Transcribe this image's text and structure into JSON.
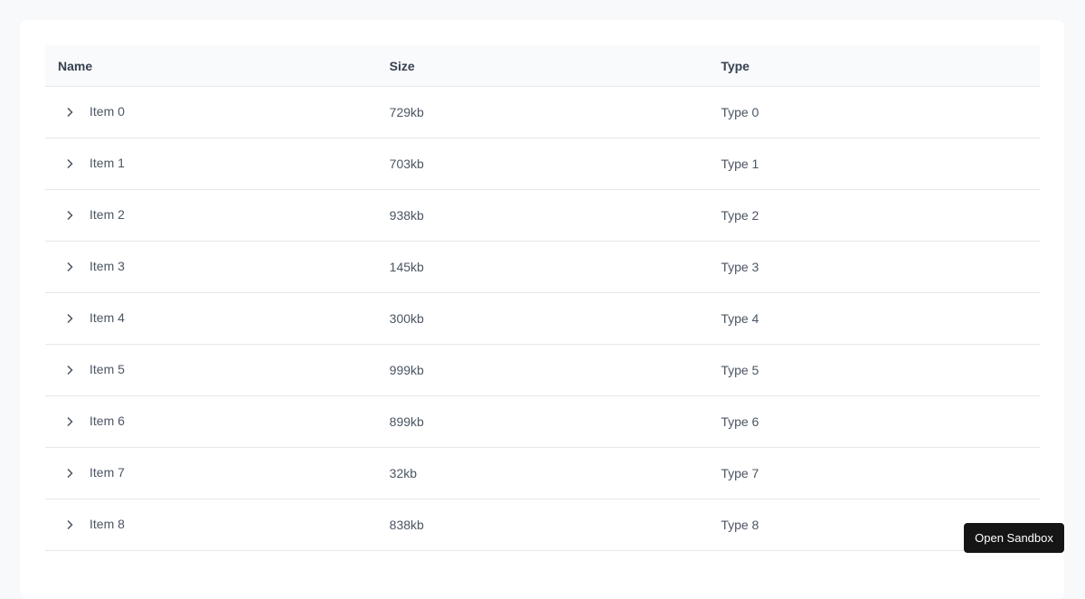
{
  "table": {
    "columns": [
      "Name",
      "Size",
      "Type"
    ],
    "rows": [
      {
        "name": "Item 0",
        "size": "729kb",
        "type": "Type 0"
      },
      {
        "name": "Item 1",
        "size": "703kb",
        "type": "Type 1"
      },
      {
        "name": "Item 2",
        "size": "938kb",
        "type": "Type 2"
      },
      {
        "name": "Item 3",
        "size": "145kb",
        "type": "Type 3"
      },
      {
        "name": "Item 4",
        "size": "300kb",
        "type": "Type 4"
      },
      {
        "name": "Item 5",
        "size": "999kb",
        "type": "Type 5"
      },
      {
        "name": "Item 6",
        "size": "899kb",
        "type": "Type 6"
      },
      {
        "name": "Item 7",
        "size": "32kb",
        "type": "Type 7"
      },
      {
        "name": "Item 8",
        "size": "838kb",
        "type": "Type 8"
      }
    ],
    "expand_icon": "chevron-right-icon"
  },
  "sandbox_button": "Open Sandbox"
}
